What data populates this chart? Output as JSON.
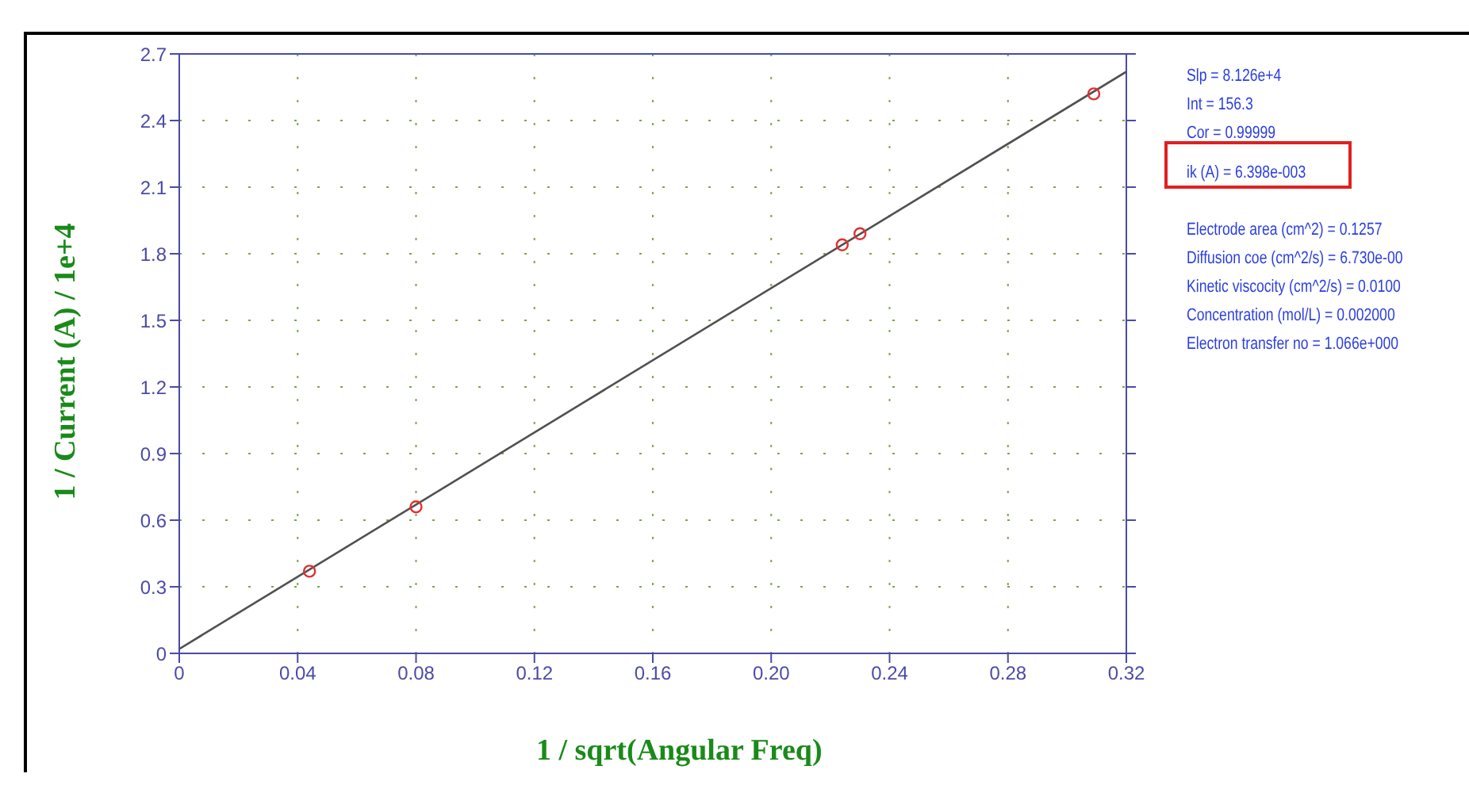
{
  "chart_data": {
    "type": "scatter",
    "xlabel": "1 / sqrt(Angular Freq)",
    "ylabel": "1 / Current (A) / 1e+4",
    "xlim": [
      0,
      0.32
    ],
    "xticks": [
      0,
      0.04,
      0.08,
      {
        "value": 0.12,
        "label": "0.12"
      },
      {
        "value": 0.16,
        "label": "0.16"
      },
      {
        "value": 0.2,
        "label": "0.20"
      },
      {
        "value": 0.24,
        "label": "0.24"
      },
      {
        "value": 0.28,
        "label": "0.28"
      },
      {
        "value": 0.32,
        "label": "0.32"
      }
    ],
    "ylim": [
      0,
      2.7
    ],
    "yticks": [
      0,
      0.3,
      0.6,
      0.9,
      1.2,
      1.5,
      1.8,
      2.1,
      2.4,
      2.7
    ],
    "grid": true,
    "series": [
      {
        "color": "#e03030",
        "marker": "circle",
        "x": [
          0.044,
          0.08,
          0.224,
          0.23,
          0.309
        ],
        "values": [
          0.37,
          0.66,
          1.84,
          1.89,
          2.52
        ]
      },
      {
        "type": "line",
        "color": "#505050",
        "marker": "none",
        "line_style": "solid",
        "x": [
          0,
          0.32
        ],
        "values": [
          0.02,
          2.62
        ]
      }
    ],
    "annotations": [
      "Slp = 8.126e+4",
      "Int = 156.3",
      "Cor = 0.99999",
      "ik (A) = 6.398e-003",
      "Electrode area (cm^2) = 0.1257",
      "Diffusion coe (cm^2/s) = 6.730e-00",
      "Kinetic viscocity (cm^2/s) = 0.0100",
      "Concentration (mol/L) = 0.002000",
      "Electron transfer no = 1.066e+000"
    ]
  }
}
